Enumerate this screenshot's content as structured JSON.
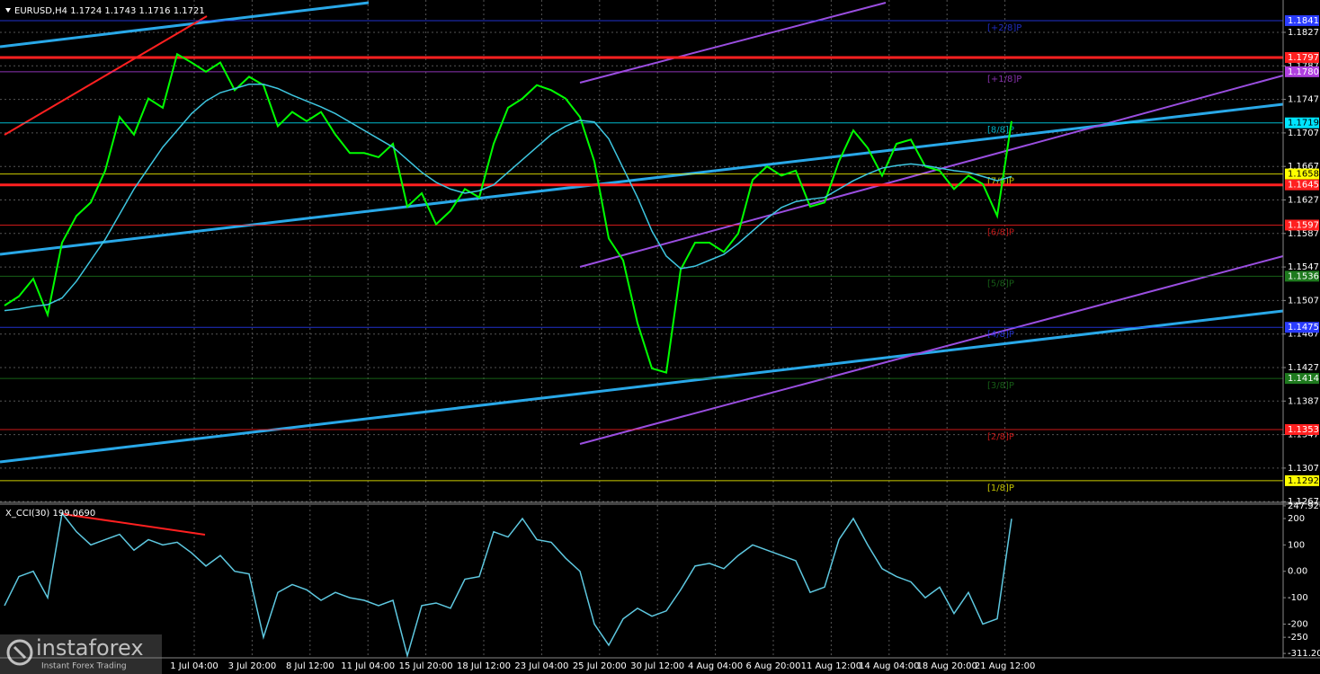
{
  "chart_data": [
    {
      "type": "line",
      "title": "EURUSD,H4  1.1724 1.1743 1.1716 1.1721",
      "series": [
        {
          "color": "#00ff00",
          "values": [
            1.1501,
            1.1512,
            1.1533,
            1.149,
            1.1576,
            1.1608,
            1.1624,
            1.1662,
            1.1726,
            1.1705,
            1.1748,
            1.1737,
            1.1801,
            1.1791,
            1.178,
            1.1791,
            1.1758,
            1.1774,
            1.1764,
            1.1715,
            1.1732,
            1.1721,
            1.1732,
            1.1705,
            1.1683,
            1.1683,
            1.1678,
            1.1694,
            1.1619,
            1.1635,
            1.1598,
            1.1614,
            1.164,
            1.163,
            1.1694,
            1.1737,
            1.1748,
            1.1764,
            1.1758,
            1.1748,
            1.1726,
            1.1673,
            1.1581,
            1.1555,
            1.148,
            1.1426,
            1.1421,
            1.1544,
            1.1576,
            1.1576,
            1.1565,
            1.1587,
            1.1651,
            1.1667,
            1.1656,
            1.1662,
            1.1619,
            1.1624,
            1.1673,
            1.171,
            1.1689,
            1.1656,
            1.1694,
            1.1699,
            1.1667,
            1.1662,
            1.164,
            1.1656,
            1.1646,
            1.1608,
            1.1721
          ]
        },
        {
          "color": "#3ec6e0",
          "values": [
            1.1495,
            1.1497,
            1.15,
            1.1502,
            1.151,
            1.153,
            1.1555,
            1.158,
            1.161,
            1.164,
            1.1665,
            1.169,
            1.171,
            1.173,
            1.1745,
            1.1755,
            1.176,
            1.1765,
            1.1765,
            1.176,
            1.1752,
            1.1745,
            1.1738,
            1.173,
            1.172,
            1.171,
            1.17,
            1.169,
            1.1675,
            1.166,
            1.1648,
            1.164,
            1.1635,
            1.1638,
            1.1645,
            1.166,
            1.1675,
            1.169,
            1.1705,
            1.1715,
            1.1722,
            1.172,
            1.17,
            1.1665,
            1.163,
            1.159,
            1.156,
            1.1545,
            1.1548,
            1.1555,
            1.1562,
            1.1575,
            1.159,
            1.1605,
            1.1618,
            1.1625,
            1.1628,
            1.163,
            1.164,
            1.165,
            1.1658,
            1.1665,
            1.1668,
            1.167,
            1.1668,
            1.1665,
            1.1662,
            1.166,
            1.1655,
            1.165,
            1.1655
          ]
        }
      ],
      "ylim": [
        1.12672,
        1.18656
      ],
      "yticks": [
        1.1827,
        1.1787,
        1.1747,
        1.1707,
        1.1667,
        1.1627,
        1.1587,
        1.1547,
        1.1507,
        1.1467,
        1.1427,
        1.1387,
        1.1347,
        1.1307,
        1.1267
      ],
      "grid": true,
      "levels": [
        {
          "value": 1.1841,
          "color": "#2a3cff",
          "murrey": "[+2/8]P"
        },
        {
          "value": 1.1797,
          "color": "#ff2020",
          "line_width": 3
        },
        {
          "value": {
            "value": 1.178,
            "label": "1.1780"
          },
          "color": "#b040e0",
          "murrey": "[+1/8]P"
        },
        {
          "value": 1.1719,
          "color": "#00e5ff",
          "murrey": "[8/8]P"
        },
        {
          "value": 1.1658,
          "color": "#ffff00",
          "murrey": "[7/8]P"
        },
        {
          "value": 1.1645,
          "color": "#ff2020",
          "line_width": 3
        },
        {
          "value": 1.1597,
          "color": "#ff2020",
          "murrey": "[6/8]P"
        },
        {
          "value": 1.1536,
          "color": "#1e7a1e",
          "murrey": "[5/8]P"
        },
        {
          "value": 1.1475,
          "color": "#2a3cff",
          "murrey": "[4/8]P"
        },
        {
          "value": 1.1414,
          "color": "#1e7a1e",
          "murrey": "[3/8]P"
        },
        {
          "value": 1.1353,
          "color": "#ff2020",
          "murrey": "[2/8]P"
        },
        {
          "value": 1.1292,
          "color": "#ffff00",
          "murrey": "[1/8]P"
        }
      ],
      "x_labels": [
        "1 Jul 04:00",
        "3 Jul 20:00",
        "8 Jul 12:00",
        "11 Jul 04:00",
        "15 Jul 20:00",
        "18 Jul 12:00",
        "23 Jul 04:00",
        "25 Jul 20:00",
        "30 Jul 12:00",
        "4 Aug 04:00",
        "6 Aug 20:00",
        "11 Aug 12:00",
        "14 Aug 04:00",
        "18 Aug 20:00",
        "21 Aug 12:00"
      ]
    },
    {
      "type": "line",
      "title": "X_CCI(30) 199.0690",
      "series": [
        {
          "color": "#5ec8e0",
          "values": [
            -130,
            -20,
            0,
            -100,
            220,
            150,
            100,
            120,
            140,
            80,
            120,
            100,
            110,
            70,
            20,
            60,
            0,
            -10,
            -250,
            -80,
            -50,
            -70,
            -110,
            -80,
            -100,
            -110,
            -130,
            -110,
            -320,
            -130,
            -120,
            -140,
            -30,
            -20,
            150,
            130,
            200,
            120,
            110,
            50,
            0,
            -200,
            -280,
            -180,
            -140,
            -170,
            -150,
            -70,
            20,
            30,
            10,
            60,
            100,
            80,
            60,
            40,
            -80,
            -60,
            120,
            200,
            100,
            10,
            -20,
            -40,
            -100,
            -60,
            -160,
            -80,
            -200,
            -180,
            199.069
          ]
        }
      ],
      "ylim": [
        -321,
        251
      ],
      "yticks": [
        247.9205,
        200,
        100,
        {
          "value": 0,
          "label": "0.00"
        },
        -100,
        -200,
        -250,
        -311.204
      ]
    }
  ],
  "watermark": {
    "brand": "instaforex",
    "tagline": "Instant Forex Trading"
  }
}
